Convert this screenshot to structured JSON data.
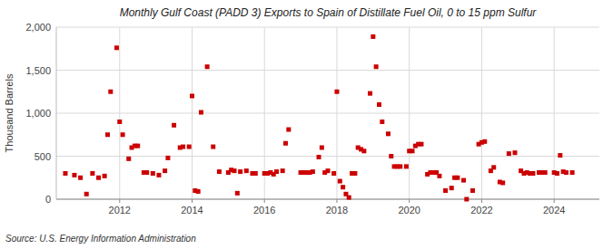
{
  "chart_data": {
    "type": "scatter",
    "title": "Monthly Gulf Coast (PADD 3) Exports to Spain of Distillate Fuel Oil, 0 to 15 ppm Sulfur",
    "ylabel": "Thousand Barrels",
    "annotations": [
      "Source: U.S. Energy Information Administration"
    ],
    "color": "#cc0000",
    "marker": "square",
    "grid": true,
    "xlim": [
      2010.25,
      2025.25
    ],
    "xticks": [
      2012,
      2014,
      2016,
      2018,
      2020,
      2022,
      2024
    ],
    "ylim": [
      0,
      2000
    ],
    "yticks": [
      0,
      500,
      {
        "value": 1000,
        "label": "1,000"
      },
      {
        "value": 1500,
        "label": "1,500"
      },
      {
        "value": 2000,
        "label": "2,000"
      }
    ],
    "x": [
      2010.5,
      2010.75,
      2010.917,
      2011.083,
      2011.25,
      2011.417,
      2011.583,
      2011.667,
      2011.75,
      2011.917,
      2012.0,
      2012.083,
      2012.25,
      2012.333,
      2012.417,
      2012.5,
      2012.667,
      2012.75,
      2012.917,
      2013.083,
      2013.25,
      2013.333,
      2013.5,
      2013.667,
      2013.75,
      2013.917,
      2014.0,
      2014.083,
      2014.167,
      2014.25,
      2014.417,
      2014.583,
      2014.75,
      2015.0,
      2015.083,
      2015.167,
      2015.25,
      2015.333,
      2015.5,
      2015.667,
      2015.75,
      2016.0,
      2016.083,
      2016.167,
      2016.25,
      2016.333,
      2016.5,
      2016.583,
      2016.667,
      2017.0,
      2017.083,
      2017.167,
      2017.25,
      2017.333,
      2017.5,
      2017.583,
      2017.667,
      2017.75,
      2017.917,
      2018.0,
      2018.083,
      2018.167,
      2018.25,
      2018.333,
      2018.417,
      2018.5,
      2018.583,
      2018.667,
      2018.75,
      2018.917,
      2019.0,
      2019.083,
      2019.167,
      2019.25,
      2019.417,
      2019.5,
      2019.583,
      2019.667,
      2019.75,
      2019.917,
      2020.0,
      2020.083,
      2020.167,
      2020.25,
      2020.333,
      2020.5,
      2020.583,
      2020.667,
      2020.75,
      2020.833,
      2021.0,
      2021.167,
      2021.25,
      2021.333,
      2021.5,
      2021.583,
      2021.75,
      2021.917,
      2022.0,
      2022.083,
      2022.25,
      2022.333,
      2022.5,
      2022.583,
      2022.75,
      2022.917,
      2023.083,
      2023.167,
      2023.25,
      2023.333,
      2023.417,
      2023.583,
      2023.667,
      2023.75,
      2024.0,
      2024.083,
      2024.167,
      2024.25,
      2024.333,
      2024.5
    ],
    "values": [
      300,
      280,
      250,
      60,
      300,
      250,
      270,
      750,
      1250,
      1760,
      900,
      750,
      470,
      600,
      620,
      620,
      310,
      310,
      300,
      280,
      330,
      480,
      860,
      600,
      610,
      610,
      1200,
      100,
      90,
      1010,
      1540,
      610,
      320,
      310,
      340,
      330,
      70,
      320,
      330,
      300,
      300,
      300,
      300,
      310,
      290,
      320,
      330,
      650,
      810,
      310,
      310,
      310,
      310,
      320,
      490,
      600,
      310,
      330,
      300,
      1250,
      210,
      140,
      60,
      20,
      300,
      300,
      600,
      580,
      560,
      1230,
      1890,
      1540,
      1100,
      900,
      760,
      500,
      380,
      380,
      380,
      380,
      560,
      560,
      620,
      640,
      640,
      290,
      310,
      310,
      310,
      270,
      100,
      130,
      250,
      250,
      220,
      0,
      100,
      640,
      660,
      670,
      330,
      370,
      200,
      190,
      530,
      540,
      330,
      300,
      310,
      300,
      300,
      310,
      310,
      310,
      310,
      300,
      510,
      320,
      310,
      310
    ]
  }
}
